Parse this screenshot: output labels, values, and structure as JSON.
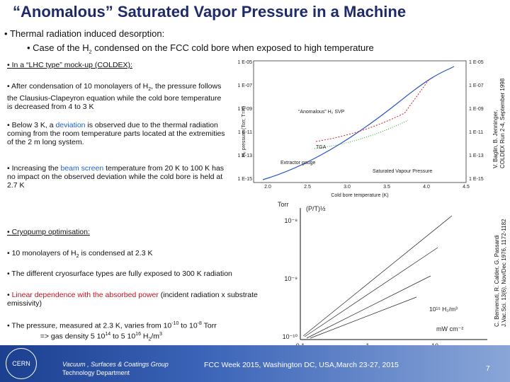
{
  "header": {
    "title": "“Anomalous” Saturated Vapor Pressure in a Machine"
  },
  "intro": {
    "bullet": "Thermal radiation induced desorption:",
    "sub": [
      "Case of the H",
      "2",
      " condensed on the FCC cold bore when exposed to high temperature"
    ]
  },
  "coldex": {
    "heading": "In a “LHC type” mock-up (COLDEX):",
    "points": [
      [
        "After condensation of 10 monolayers of H",
        "2",
        ", the pressure follows the Clausius-Clapeyron equation while the cold bore temperature is decreased from 4 to 3 K"
      ],
      [
        "Below 3 K, a ",
        "deviation",
        " is observed due to the thermal radiation coming from the room temperature parts located at the extremities of the 2 m long system."
      ],
      [
        "Increasing the ",
        "beam screen",
        " temperature from 20 K to 100 K has no impact on the observed deviation while the cold bore is held at 2.7 K"
      ]
    ],
    "reference": [
      "V. Baglin, B. Jenninger,",
      "COLDEX Run 2-4, September 1998"
    ]
  },
  "coldex_plot": {
    "y_label": "H₂ pressure (Torr, T=K)",
    "x_label": "Cold bore temperature (K)",
    "left_ticks": [
      "1 E-05",
      "1 E-07",
      "1 E-09",
      "1 E-11",
      "1 E-13",
      "1 E-15"
    ],
    "right_ticks": [
      "1 E-05",
      "1 E-07",
      "1 E-09",
      "1 E-11",
      "1 E-13",
      "1 E-15"
    ],
    "x_ticks": [
      "2.0",
      "2.5",
      "3.0",
      "3.5",
      "4.0",
      "4.5"
    ],
    "annotations": [
      "“Anomalous” H₂ SVP",
      "TGA",
      "Extractor gauge",
      "Saturated Vapour Pressure"
    ]
  },
  "cryopump": {
    "heading": "Cryopump optimisation:",
    "points": [
      [
        "10 monolayers of H",
        "2",
        " is condensed at 2.3 K"
      ],
      [
        "The different cryosurface types are fully exposed to 300 K radiation"
      ],
      [
        "Linear dependence with the absorbed power",
        " (incident radiation x substrate emissivity)"
      ],
      [
        "The pressure, measured at 2.3 K, varies from 10",
        "-10",
        " to 10",
        "-8",
        " Torr",
        "=> gas density 5 10",
        "14",
        " to 5 10",
        "16",
        " H",
        "2",
        "/m",
        "3"
      ]
    ],
    "reference": [
      "C. Benvenuti, R. Calder, G. Passardi",
      "J.Vac.Sci. 13(6), Nov/Dec 1976, 1172-1182"
    ]
  },
  "cryo_plot": {
    "y_unit": "Torr",
    "y_label": "(P/T)½",
    "y_ticks": [
      "10⁻⁸",
      "10⁻⁹",
      "10⁻¹⁰"
    ],
    "x_ticks": [
      "0.1",
      "1",
      "10"
    ],
    "x_unit": "mW cm⁻²",
    "density": "10¹⁵ H₂/m³"
  },
  "footer": {
    "logo": "CERN",
    "group": "Vacuum , Surfaces & Coatings Group",
    "department": "Technology Department",
    "event": "FCC Week 2015, Washington DC, USA,March 23-27, 2015",
    "page": "7"
  }
}
